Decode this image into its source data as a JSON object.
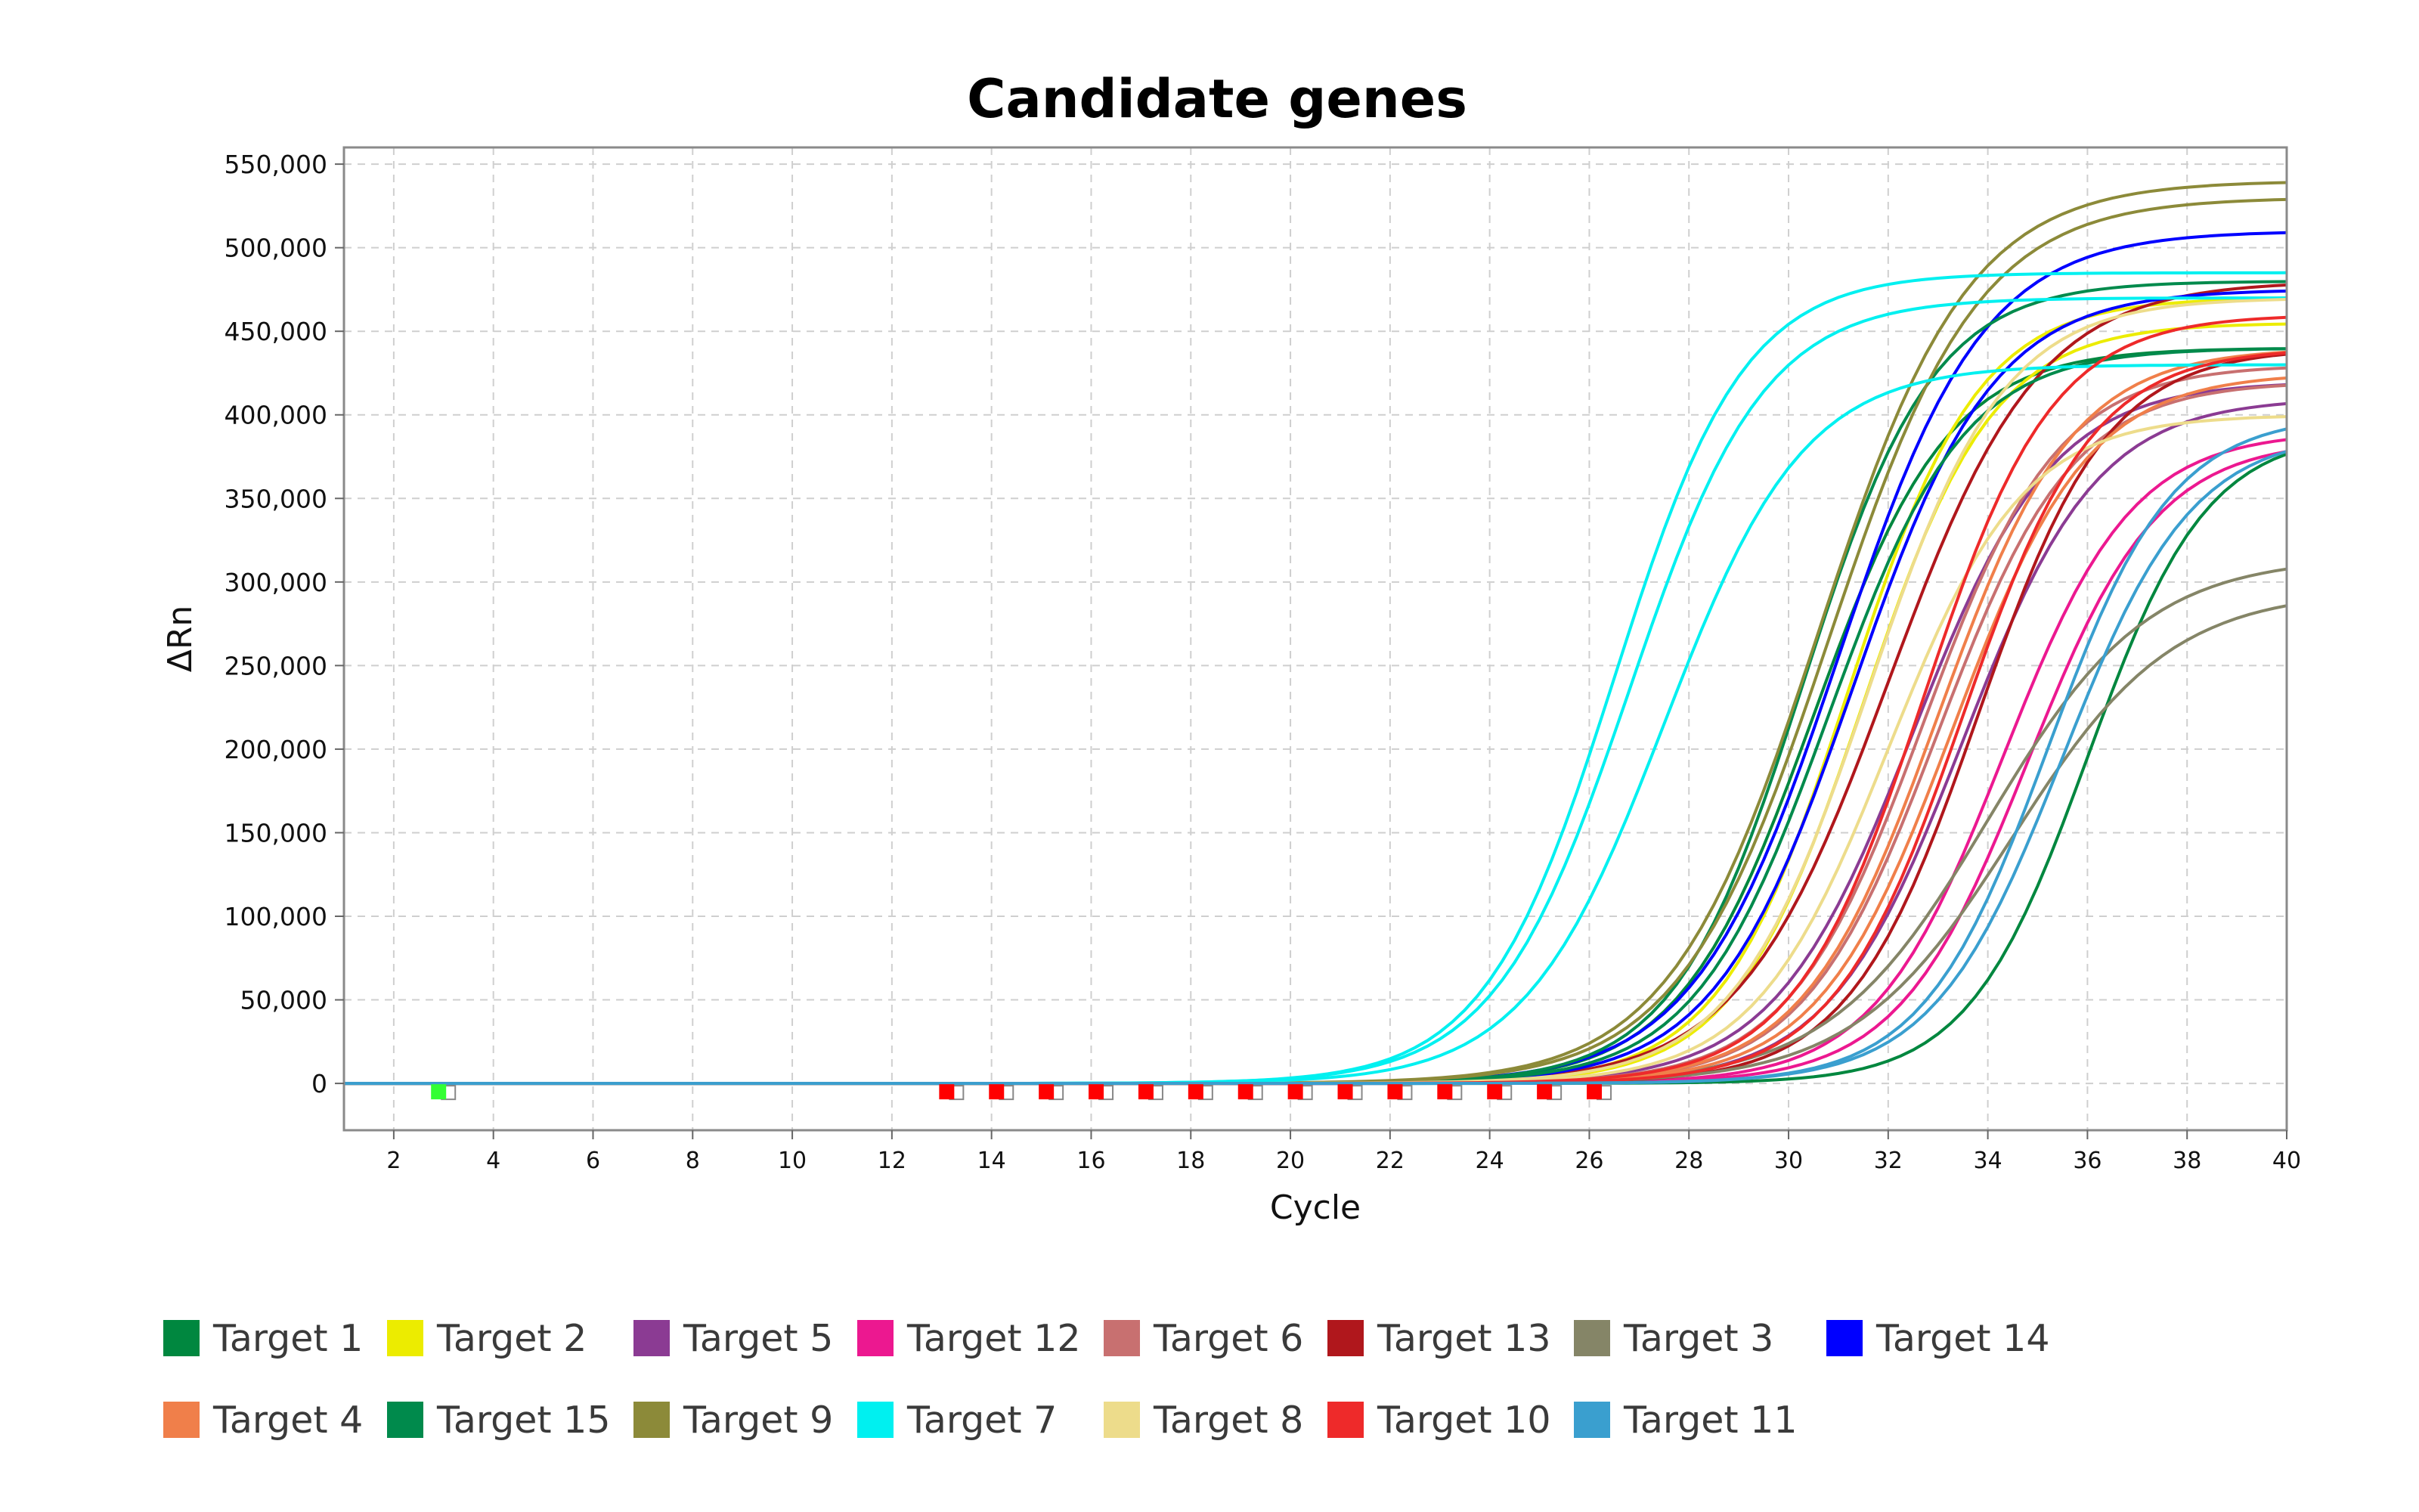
{
  "chart_data": {
    "type": "line",
    "title": "Candidate genes",
    "xlabel": "Cycle",
    "ylabel": "ΔRn",
    "xlim": [
      1,
      40
    ],
    "ylim": [
      -28000,
      560000
    ],
    "xticks": [
      2,
      4,
      6,
      8,
      10,
      12,
      14,
      16,
      18,
      20,
      22,
      24,
      26,
      28,
      30,
      32,
      34,
      36,
      38,
      40
    ],
    "xtick_labels": [
      "2",
      "4",
      "6",
      "8",
      "10",
      "12",
      "14",
      "16",
      "18",
      "20",
      "22",
      "24",
      "26",
      "28",
      "30",
      "32",
      "34",
      "36",
      "38",
      "40"
    ],
    "yticks": [
      0,
      50000,
      100000,
      150000,
      200000,
      250000,
      300000,
      350000,
      400000,
      450000,
      500000,
      550000
    ],
    "ytick_labels": [
      "0",
      "50,000",
      "100,000",
      "150,000",
      "200,000",
      "250,000",
      "300,000",
      "350,000",
      "400,000",
      "450,000",
      "500,000",
      "550,000"
    ],
    "grid": true,
    "legend_position": "bottom",
    "curve_model": "logistic ΔRn = plateau / (1 + e^(-(cycle - midpoint)/slope))",
    "series": [
      {
        "name": "Target 1",
        "color": "#00873f",
        "curves": [
          {
            "plateau": 440000,
            "midpoint": 30.5,
            "slope": 1.35
          },
          {
            "plateau": 390000,
            "midpoint": 36.0,
            "slope": 1.2
          }
        ]
      },
      {
        "name": "Target 2",
        "color": "#ecec00",
        "curves": [
          {
            "plateau": 470000,
            "midpoint": 31.2,
            "slope": 1.3
          },
          {
            "plateau": 455000,
            "midpoint": 31.5,
            "slope": 1.3
          }
        ]
      },
      {
        "name": "Target 5",
        "color": "#8b3b93",
        "curves": [
          {
            "plateau": 420000,
            "midpoint": 32.5,
            "slope": 1.4
          },
          {
            "plateau": 410000,
            "midpoint": 33.5,
            "slope": 1.35
          }
        ]
      },
      {
        "name": "Target 12",
        "color": "#ec1890",
        "curves": [
          {
            "plateau": 390000,
            "midpoint": 34.3,
            "slope": 1.3
          },
          {
            "plateau": 385000,
            "midpoint": 34.8,
            "slope": 1.3
          }
        ]
      },
      {
        "name": "Target 6",
        "color": "#c87070",
        "curves": [
          {
            "plateau": 430000,
            "midpoint": 32.7,
            "slope": 1.35
          },
          {
            "plateau": 420000,
            "midpoint": 33.0,
            "slope": 1.35
          }
        ]
      },
      {
        "name": "Target 13",
        "color": "#b0171c",
        "curves": [
          {
            "plateau": 480000,
            "midpoint": 32.0,
            "slope": 1.5
          },
          {
            "plateau": 440000,
            "midpoint": 33.8,
            "slope": 1.3
          }
        ]
      },
      {
        "name": "Target 3",
        "color": "#858567",
        "curves": [
          {
            "plateau": 315000,
            "midpoint": 34.0,
            "slope": 1.6
          },
          {
            "plateau": 295000,
            "midpoint": 34.5,
            "slope": 1.6
          }
        ]
      },
      {
        "name": "Target 14",
        "color": "#0000ff",
        "curves": [
          {
            "plateau": 510000,
            "midpoint": 31.0,
            "slope": 1.45
          },
          {
            "plateau": 475000,
            "midpoint": 31.3,
            "slope": 1.4
          }
        ]
      },
      {
        "name": "Target 4",
        "color": "#f07f4a",
        "curves": [
          {
            "plateau": 440000,
            "midpoint": 33.0,
            "slope": 1.35
          },
          {
            "plateau": 425000,
            "midpoint": 33.3,
            "slope": 1.35
          }
        ]
      },
      {
        "name": "Target 15",
        "color": "#008a4c",
        "curves": [
          {
            "plateau": 480000,
            "midpoint": 30.3,
            "slope": 1.3
          },
          {
            "plateau": 440000,
            "midpoint": 30.8,
            "slope": 1.35
          }
        ]
      },
      {
        "name": "Target 9",
        "color": "#8c8a39",
        "curves": [
          {
            "plateau": 540000,
            "midpoint": 30.6,
            "slope": 1.5
          },
          {
            "plateau": 530000,
            "midpoint": 30.8,
            "slope": 1.5
          }
        ]
      },
      {
        "name": "Target 7",
        "color": "#00f0f0",
        "curves": [
          {
            "plateau": 485000,
            "midpoint": 26.5,
            "slope": 1.3
          },
          {
            "plateau": 470000,
            "midpoint": 26.8,
            "slope": 1.35
          },
          {
            "plateau": 430000,
            "midpoint": 27.5,
            "slope": 1.4
          }
        ]
      },
      {
        "name": "Target 8",
        "color": "#eddc8b",
        "curves": [
          {
            "plateau": 470000,
            "midpoint": 31.6,
            "slope": 1.35
          },
          {
            "plateau": 400000,
            "midpoint": 32.0,
            "slope": 1.35
          }
        ]
      },
      {
        "name": "Target 10",
        "color": "#ee2a2a",
        "curves": [
          {
            "plateau": 460000,
            "midpoint": 32.7,
            "slope": 1.3
          },
          {
            "plateau": 440000,
            "midpoint": 33.5,
            "slope": 1.3
          }
        ]
      },
      {
        "name": "Target 11",
        "color": "#3a9fcf",
        "curves": [
          {
            "plateau": 400000,
            "midpoint": 35.2,
            "slope": 1.25
          },
          {
            "plateau": 390000,
            "midpoint": 35.5,
            "slope": 1.3
          }
        ]
      }
    ],
    "baseline_markers": [
      {
        "cycle": 2.9,
        "value": -5000,
        "color": "#33ff33"
      },
      {
        "cycle": 13.1,
        "value": -5000,
        "color": "#ff0000"
      },
      {
        "cycle": 14.1,
        "value": -5000,
        "color": "#ff0000"
      },
      {
        "cycle": 15.1,
        "value": -5000,
        "color": "#ff0000"
      },
      {
        "cycle": 16.1,
        "value": -5000,
        "color": "#ff0000"
      },
      {
        "cycle": 17.1,
        "value": -5000,
        "color": "#ff0000"
      },
      {
        "cycle": 18.1,
        "value": -5000,
        "color": "#ff0000"
      },
      {
        "cycle": 19.1,
        "value": -5000,
        "color": "#ff0000"
      },
      {
        "cycle": 20.1,
        "value": -5000,
        "color": "#ff0000"
      },
      {
        "cycle": 21.1,
        "value": -5000,
        "color": "#ff0000"
      },
      {
        "cycle": 22.1,
        "value": -5000,
        "color": "#ff0000"
      },
      {
        "cycle": 23.1,
        "value": -5000,
        "color": "#ff0000"
      },
      {
        "cycle": 24.1,
        "value": -5000,
        "color": "#ff0000"
      },
      {
        "cycle": 25.1,
        "value": -5000,
        "color": "#ff0000"
      },
      {
        "cycle": 26.1,
        "value": -5000,
        "color": "#ff0000"
      }
    ]
  },
  "legend": {
    "rows": [
      [
        {
          "label": "Target 1",
          "color": "#00873f"
        },
        {
          "label": "Target 2",
          "color": "#ecec00"
        },
        {
          "label": "Target 5",
          "color": "#8b3b93"
        },
        {
          "label": "Target 12",
          "color": "#ec1890"
        },
        {
          "label": "Target 6",
          "color": "#c87070"
        },
        {
          "label": "Target 13",
          "color": "#b0171c"
        },
        {
          "label": "Target 3",
          "color": "#858567"
        },
        {
          "label": "Target 14",
          "color": "#0000ff"
        }
      ],
      [
        {
          "label": "Target 4",
          "color": "#f07f4a"
        },
        {
          "label": "Target 15",
          "color": "#008a4c"
        },
        {
          "label": "Target 9",
          "color": "#8c8a39"
        },
        {
          "label": "Target 7",
          "color": "#00f0f0"
        },
        {
          "label": "Target 8",
          "color": "#eddc8b"
        },
        {
          "label": "Target 10",
          "color": "#ee2a2a"
        },
        {
          "label": "Target 11",
          "color": "#3a9fcf"
        }
      ]
    ]
  }
}
